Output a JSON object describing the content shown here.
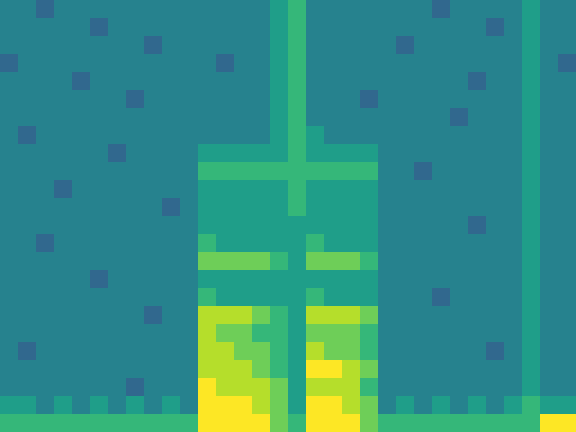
{
  "chart_data": {
    "type": "heatmap",
    "tick_labels": false,
    "zlim": [
      0,
      9
    ],
    "values": [
      [
        4,
        4,
        3,
        4,
        4,
        4,
        4,
        4,
        4,
        4,
        4,
        4,
        4,
        4,
        4,
        5,
        6,
        4,
        4,
        4,
        4,
        4,
        4,
        4,
        3,
        4,
        4,
        4,
        4,
        5,
        4,
        4
      ],
      [
        4,
        4,
        4,
        4,
        4,
        3,
        4,
        4,
        4,
        4,
        4,
        4,
        4,
        4,
        4,
        5,
        6,
        4,
        4,
        4,
        4,
        4,
        4,
        4,
        4,
        4,
        4,
        3,
        4,
        5,
        4,
        4
      ],
      [
        4,
        4,
        4,
        4,
        4,
        4,
        4,
        4,
        3,
        4,
        4,
        4,
        4,
        4,
        4,
        5,
        6,
        4,
        4,
        4,
        4,
        4,
        3,
        4,
        4,
        4,
        4,
        4,
        4,
        5,
        4,
        4
      ],
      [
        3,
        4,
        4,
        4,
        4,
        4,
        4,
        4,
        4,
        4,
        4,
        4,
        3,
        4,
        4,
        5,
        6,
        4,
        4,
        4,
        4,
        4,
        4,
        4,
        4,
        4,
        4,
        4,
        4,
        5,
        4,
        3
      ],
      [
        4,
        4,
        4,
        4,
        3,
        4,
        4,
        4,
        4,
        4,
        4,
        4,
        4,
        4,
        4,
        5,
        6,
        4,
        4,
        4,
        4,
        4,
        4,
        4,
        4,
        4,
        3,
        4,
        4,
        5,
        4,
        4
      ],
      [
        4,
        4,
        4,
        4,
        4,
        4,
        4,
        3,
        4,
        4,
        4,
        4,
        4,
        4,
        4,
        5,
        6,
        4,
        4,
        4,
        3,
        4,
        4,
        4,
        4,
        4,
        4,
        4,
        4,
        5,
        4,
        4
      ],
      [
        4,
        4,
        4,
        4,
        4,
        4,
        4,
        4,
        4,
        4,
        4,
        4,
        4,
        4,
        4,
        5,
        6,
        4,
        4,
        4,
        4,
        4,
        4,
        4,
        4,
        3,
        4,
        4,
        4,
        5,
        4,
        4
      ],
      [
        4,
        3,
        4,
        4,
        4,
        4,
        4,
        4,
        4,
        4,
        4,
        4,
        4,
        4,
        4,
        5,
        6,
        5,
        4,
        4,
        4,
        4,
        4,
        4,
        4,
        4,
        4,
        4,
        4,
        5,
        4,
        4
      ],
      [
        4,
        4,
        4,
        4,
        4,
        4,
        3,
        4,
        4,
        4,
        4,
        5,
        5,
        5,
        5,
        5,
        6,
        5,
        5,
        5,
        5,
        4,
        4,
        4,
        4,
        4,
        4,
        4,
        4,
        5,
        4,
        4
      ],
      [
        4,
        4,
        4,
        4,
        4,
        4,
        4,
        4,
        4,
        4,
        4,
        6,
        6,
        6,
        6,
        6,
        6,
        6,
        6,
        6,
        6,
        4,
        4,
        3,
        4,
        4,
        4,
        4,
        4,
        5,
        4,
        4
      ],
      [
        4,
        4,
        4,
        3,
        4,
        4,
        4,
        4,
        4,
        4,
        4,
        5,
        5,
        5,
        5,
        5,
        6,
        5,
        5,
        5,
        5,
        4,
        4,
        4,
        4,
        4,
        4,
        4,
        4,
        5,
        4,
        4
      ],
      [
        4,
        4,
        4,
        4,
        4,
        4,
        4,
        4,
        4,
        3,
        4,
        5,
        5,
        5,
        5,
        5,
        6,
        5,
        5,
        5,
        5,
        4,
        4,
        4,
        4,
        4,
        4,
        4,
        4,
        5,
        4,
        4
      ],
      [
        4,
        4,
        4,
        4,
        4,
        4,
        4,
        4,
        4,
        4,
        4,
        5,
        5,
        5,
        5,
        5,
        5,
        5,
        5,
        5,
        5,
        4,
        4,
        4,
        4,
        4,
        3,
        4,
        4,
        5,
        4,
        4
      ],
      [
        4,
        4,
        3,
        4,
        4,
        4,
        4,
        4,
        4,
        4,
        4,
        6,
        5,
        5,
        5,
        5,
        5,
        6,
        5,
        5,
        5,
        4,
        4,
        4,
        4,
        4,
        4,
        4,
        4,
        5,
        4,
        4
      ],
      [
        4,
        4,
        4,
        4,
        4,
        4,
        4,
        4,
        4,
        4,
        4,
        7,
        7,
        7,
        7,
        6,
        5,
        7,
        7,
        7,
        6,
        4,
        4,
        4,
        4,
        4,
        4,
        4,
        4,
        5,
        4,
        4
      ],
      [
        4,
        4,
        4,
        4,
        4,
        3,
        4,
        4,
        4,
        4,
        4,
        5,
        5,
        5,
        5,
        5,
        5,
        5,
        5,
        5,
        5,
        4,
        4,
        4,
        4,
        4,
        4,
        4,
        4,
        5,
        4,
        4
      ],
      [
        4,
        4,
        4,
        4,
        4,
        4,
        4,
        4,
        4,
        4,
        4,
        6,
        5,
        5,
        5,
        5,
        5,
        6,
        5,
        5,
        5,
        4,
        4,
        4,
        3,
        4,
        4,
        4,
        4,
        5,
        4,
        4
      ],
      [
        4,
        4,
        4,
        4,
        4,
        4,
        4,
        4,
        3,
        4,
        4,
        8,
        8,
        8,
        7,
        6,
        5,
        8,
        8,
        8,
        7,
        4,
        4,
        4,
        4,
        4,
        4,
        4,
        4,
        5,
        4,
        4
      ],
      [
        4,
        4,
        4,
        4,
        4,
        4,
        4,
        4,
        4,
        4,
        4,
        8,
        7,
        7,
        6,
        6,
        5,
        7,
        7,
        7,
        6,
        4,
        4,
        4,
        4,
        4,
        4,
        4,
        4,
        5,
        4,
        4
      ],
      [
        4,
        3,
        4,
        4,
        4,
        4,
        4,
        4,
        4,
        4,
        4,
        8,
        8,
        7,
        7,
        6,
        5,
        8,
        7,
        7,
        6,
        4,
        4,
        4,
        4,
        4,
        4,
        3,
        4,
        5,
        4,
        4
      ],
      [
        4,
        4,
        4,
        4,
        4,
        4,
        4,
        4,
        4,
        4,
        4,
        8,
        8,
        8,
        7,
        6,
        5,
        9,
        9,
        8,
        7,
        4,
        4,
        4,
        4,
        4,
        4,
        4,
        4,
        5,
        4,
        4
      ],
      [
        4,
        4,
        4,
        4,
        4,
        4,
        4,
        3,
        4,
        4,
        4,
        9,
        8,
        8,
        8,
        7,
        5,
        8,
        8,
        8,
        6,
        4,
        4,
        4,
        4,
        4,
        4,
        4,
        4,
        5,
        4,
        4
      ],
      [
        5,
        5,
        4,
        5,
        4,
        5,
        4,
        5,
        4,
        5,
        4,
        9,
        9,
        9,
        8,
        7,
        5,
        9,
        9,
        8,
        7,
        4,
        5,
        4,
        5,
        4,
        5,
        4,
        5,
        6,
        5,
        5
      ],
      [
        6,
        6,
        6,
        6,
        6,
        6,
        6,
        6,
        6,
        6,
        6,
        9,
        9,
        9,
        9,
        7,
        6,
        9,
        9,
        9,
        7,
        6,
        6,
        6,
        6,
        6,
        6,
        6,
        6,
        6,
        9,
        9
      ]
    ]
  }
}
